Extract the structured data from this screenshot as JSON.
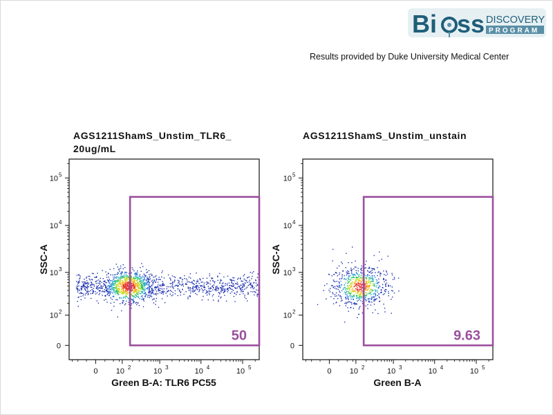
{
  "logo": {
    "brand_prefix": "Bi",
    "brand_suffix": "ss",
    "line1": "DISCOVERY",
    "line2": "PROGRAM",
    "bar_color": "#5a8fa6",
    "accent_color": "#2f6f8a"
  },
  "credit": "Results provided by Duke University Medical Center",
  "chart_data": [
    {
      "type": "scatter",
      "title_line1": "AGS1211ShamS_Unstim_TLR6_",
      "title_line2": "20ug/mL",
      "xlabel": "Green B-A: TLR6 PC55",
      "ylabel": "SSC-A",
      "x_scale": "biexponential",
      "y_scale": "biexponential",
      "xlim": [
        -100,
        250000
      ],
      "ylim": [
        -30,
        250000
      ],
      "x_ticks": [
        {
          "v": 0,
          "base": "0",
          "exp": ""
        },
        {
          "v": 100,
          "base": "10",
          "exp": "2"
        },
        {
          "v": 1000,
          "base": "10",
          "exp": "3"
        },
        {
          "v": 10000,
          "base": "10",
          "exp": "4"
        },
        {
          "v": 100000,
          "base": "10",
          "exp": "5"
        }
      ],
      "y_ticks": [
        {
          "v": 0,
          "base": "0",
          "exp": ""
        },
        {
          "v": 100,
          "base": "10",
          "exp": "2"
        },
        {
          "v": 1000,
          "base": "10",
          "exp": "3"
        },
        {
          "v": 10000,
          "base": "10",
          "exp": "4"
        },
        {
          "v": 100000,
          "base": "10",
          "exp": "5"
        }
      ],
      "gate": {
        "x_min": 170,
        "x_max": 250000,
        "y_min": -30,
        "y_max": 40000,
        "label": "50",
        "color": "#9b4f9e"
      },
      "population": {
        "center_x": 150,
        "center_y": 500,
        "x_extent_max": 250000,
        "shape": "tail"
      }
    },
    {
      "type": "scatter",
      "title_line1": "AGS1211ShamS_Unstim_unstain",
      "title_line2": "",
      "xlabel": "Green B-A",
      "ylabel": "SSC-A",
      "x_scale": "biexponential",
      "y_scale": "biexponential",
      "xlim": [
        -100,
        250000
      ],
      "ylim": [
        -30,
        250000
      ],
      "x_ticks": [
        {
          "v": 0,
          "base": "0",
          "exp": ""
        },
        {
          "v": 100,
          "base": "10",
          "exp": "2"
        },
        {
          "v": 1000,
          "base": "10",
          "exp": "3"
        },
        {
          "v": 10000,
          "base": "10",
          "exp": "4"
        },
        {
          "v": 100000,
          "base": "10",
          "exp": "5"
        }
      ],
      "y_ticks": [
        {
          "v": 0,
          "base": "0",
          "exp": ""
        },
        {
          "v": 100,
          "base": "10",
          "exp": "2"
        },
        {
          "v": 1000,
          "base": "10",
          "exp": "3"
        },
        {
          "v": 10000,
          "base": "10",
          "exp": "4"
        },
        {
          "v": 100000,
          "base": "10",
          "exp": "5"
        }
      ],
      "gate": {
        "x_min": 170,
        "x_max": 250000,
        "y_min": -30,
        "y_max": 40000,
        "label": "9.63",
        "color": "#9b4f9e"
      },
      "population": {
        "center_x": 130,
        "center_y": 500,
        "x_extent_max": 1500,
        "shape": "compact"
      }
    }
  ]
}
